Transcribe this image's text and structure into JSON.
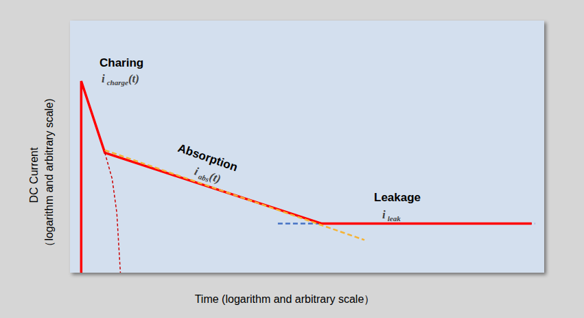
{
  "chart_data": {
    "type": "line",
    "x_label": "Time (logarithm and arbitrary scale）",
    "y_label": "DC Current\n（logarithm and arbitrary scale)",
    "log": true,
    "tick_labels": false,
    "grid": false,
    "xlim": [
      0.8,
      10000
    ],
    "ylim": [
      1,
      10000
    ],
    "series": [
      {
        "color": "#4472c4",
        "line_style": "dashed",
        "x": [
          50,
          8300
        ],
        "values": [
          6,
          6
        ]
      },
      {
        "color": "#ff0000",
        "line_style": "solid",
        "x": [
          1,
          1,
          1.6,
          120,
          7800
        ],
        "values": [
          1,
          1100,
          80,
          6,
          6
        ]
      },
      {
        "color": "#f5b335",
        "line_style": "dashed",
        "x": [
          1.6,
          280
        ],
        "values": [
          88,
          3.3
        ]
      },
      {
        "color": "#cc0000",
        "line_style": "dashed",
        "x": [
          1.6,
          1.85,
          2.03,
          2.18
        ],
        "values": [
          80,
          31,
          8.9,
          1
        ]
      }
    ],
    "annotations": [
      {
        "text": "Charing",
        "symbol": "i",
        "subscript": "charge",
        "suffix": "(t)"
      },
      {
        "text": "Absorption",
        "symbol": "i",
        "subscript": "abs",
        "suffix": "(t)"
      },
      {
        "text": "Leakage",
        "symbol": "i",
        "subscript": "leak"
      }
    ]
  }
}
